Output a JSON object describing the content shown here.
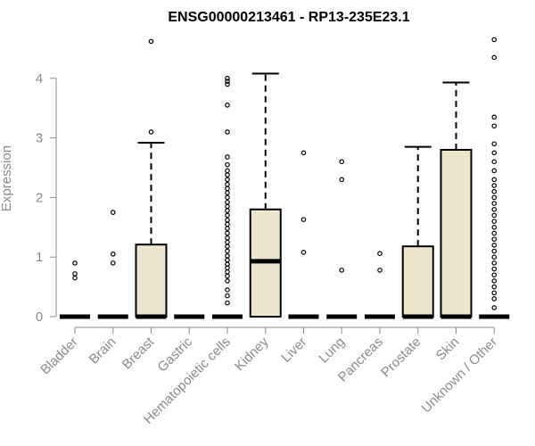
{
  "chart_data": {
    "type": "boxplot",
    "title": "ENSG00000213461 - RP13-235E23.1",
    "ylabel": "Expression",
    "xlabel": "",
    "ylim": [
      0,
      4.7
    ],
    "yticks": [
      0,
      1,
      2,
      3,
      4
    ],
    "grid": false,
    "legend": "none",
    "box_fill": "#ede6cc",
    "point_color": "#000000",
    "categories": [
      "Bladder",
      "Brain",
      "Breast",
      "Gastric",
      "Hematopoietic cells",
      "Kidney",
      "Liver",
      "Lung",
      "Pancreas",
      "Prostate",
      "Skin",
      "Unknown / Other"
    ],
    "boxes": [
      {
        "name": "Bladder",
        "q1": 0,
        "median": 0,
        "q3": 0,
        "whisker_low": 0,
        "whisker_high": 0,
        "outliers": [
          0.65,
          0.72,
          0.9
        ]
      },
      {
        "name": "Brain",
        "q1": 0,
        "median": 0,
        "q3": 0,
        "whisker_low": 0,
        "whisker_high": 0,
        "outliers": [
          0.9,
          1.05,
          1.75
        ]
      },
      {
        "name": "Breast",
        "q1": 0,
        "median": 0,
        "q3": 1.21,
        "whisker_low": 0,
        "whisker_high": 2.92,
        "outliers": [
          3.1,
          4.62
        ]
      },
      {
        "name": "Gastric",
        "q1": 0,
        "median": 0,
        "q3": 0,
        "whisker_low": 0,
        "whisker_high": 0,
        "outliers": []
      },
      {
        "name": "Hematopoietic cells",
        "q1": 0,
        "median": 0,
        "q3": 0,
        "whisker_low": 0,
        "whisker_high": 0,
        "outliers": [
          0.23,
          0.35,
          0.45,
          0.6,
          0.68,
          0.75,
          0.82,
          0.88,
          0.95,
          1.02,
          1.1,
          1.18,
          1.25,
          1.32,
          1.4,
          1.48,
          1.55,
          1.62,
          1.7,
          1.78,
          1.85,
          1.92,
          2.0,
          2.08,
          2.15,
          2.22,
          2.3,
          2.38,
          2.45,
          2.55,
          2.68,
          3.1,
          3.55,
          3.9,
          3.95,
          4.0
        ]
      },
      {
        "name": "Kidney",
        "q1": 0,
        "median": 0.93,
        "q3": 1.8,
        "whisker_low": 0,
        "whisker_high": 4.08,
        "outliers": []
      },
      {
        "name": "Liver",
        "q1": 0,
        "median": 0,
        "q3": 0,
        "whisker_low": 0,
        "whisker_high": 0,
        "outliers": [
          1.08,
          1.63,
          2.75
        ]
      },
      {
        "name": "Lung",
        "q1": 0,
        "median": 0,
        "q3": 0,
        "whisker_low": 0,
        "whisker_high": 0,
        "outliers": [
          0.78,
          2.3,
          2.6
        ]
      },
      {
        "name": "Pancreas",
        "q1": 0,
        "median": 0,
        "q3": 0,
        "whisker_low": 0,
        "whisker_high": 0,
        "outliers": [
          0.78,
          1.06
        ]
      },
      {
        "name": "Prostate",
        "q1": 0,
        "median": 0,
        "q3": 1.18,
        "whisker_low": 0,
        "whisker_high": 2.85,
        "outliers": []
      },
      {
        "name": "Skin",
        "q1": 0,
        "median": 0,
        "q3": 2.8,
        "whisker_low": 0,
        "whisker_high": 3.93,
        "outliers": []
      },
      {
        "name": "Unknown / Other",
        "q1": 0,
        "median": 0,
        "q3": 0,
        "whisker_low": 0,
        "whisker_high": 0,
        "outliers": [
          0.15,
          0.3,
          0.4,
          0.5,
          0.6,
          0.7,
          0.8,
          0.9,
          1.0,
          1.1,
          1.2,
          1.3,
          1.4,
          1.5,
          1.6,
          1.7,
          1.8,
          1.9,
          2.0,
          2.1,
          2.2,
          2.3,
          2.45,
          2.6,
          2.75,
          2.9,
          3.2,
          3.35,
          4.35,
          4.65
        ]
      }
    ]
  }
}
